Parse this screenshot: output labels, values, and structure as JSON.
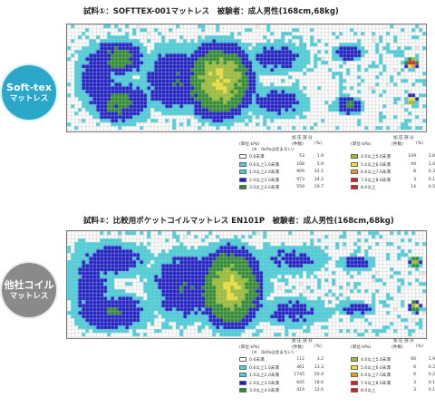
{
  "colors": {
    "gray": "#c9c9c9",
    "cyan": "#3fd3de",
    "blue": "#1e1ed2",
    "green": "#2a8f2a",
    "olive": "#9bc12a",
    "yellow": "#f2e62a",
    "orange": "#f59a1e",
    "red": "#e01b1b",
    "grid": "#bfbfbf"
  },
  "panels": [
    {
      "title": "試料①：SOFTTEX-001マットレス　被験者：成人男性(168cm,68kg)",
      "badge": {
        "line1": "Soft-tex",
        "line2": "マットレス"
      },
      "legend": {
        "head_left": {
          "unit": "(単位:kPa)",
          "header": "加 圧 部 分",
          "count": "(件数)",
          "pct": "(%)",
          "note": "(※　0kPaは含まない)"
        },
        "head_right": {
          "unit": "(単位:kPa)",
          "header": "加 圧 部 分",
          "count": "(件数)",
          "pct": "(%)"
        },
        "left_rows": [
          {
            "label": "0.6未満",
            "count": "53",
            "pct": "1.9",
            "color": "gray"
          },
          {
            "label": "0.6以上1.0未満",
            "count": "168",
            "pct": "5.9",
            "color": "cyan"
          },
          {
            "label": "1.0以上2.0未満",
            "count": "909",
            "pct": "32.1",
            "color": "cyan"
          },
          {
            "label": "2.0以上3.0未満",
            "count": "973",
            "pct": "34.2",
            "color": "blue"
          },
          {
            "label": "3.0以上4.0未満",
            "count": "559",
            "pct": "19.7",
            "color": "green"
          }
        ],
        "right_rows": [
          {
            "label": "4.0以上5.0未満",
            "count": "109",
            "pct": "3.8",
            "color": "olive"
          },
          {
            "label": "5.0以上6.0未満",
            "count": "40",
            "pct": "1.4",
            "color": "yellow"
          },
          {
            "label": "6.0以上7.0未満",
            "count": "8",
            "pct": "0.3",
            "color": "orange"
          },
          {
            "label": "7.0以上8.0未満",
            "count": "3",
            "pct": "0.1",
            "color": "red"
          },
          {
            "label": "8.0以上",
            "count": "14",
            "pct": "0.5",
            "color": "red"
          }
        ]
      }
    },
    {
      "title": "試料②：比較用ポケットコイルマットレス EN101P　被験者：成人男性(168cm,68kg)",
      "badge": {
        "line1": "他社コイル",
        "line2": "マットレス"
      },
      "legend": {
        "head_left": {
          "unit": "(単位:kPa)",
          "header": "加 圧 部 分",
          "count": "(件数)",
          "pct": "(%)",
          "note": "(※　0kPaは含まない)"
        },
        "head_right": {
          "unit": "(単位:kPa)",
          "header": "加 圧 部 分",
          "count": "(件数)",
          "pct": "(%)"
        },
        "left_rows": [
          {
            "label": "0.6未満",
            "count": "112",
            "pct": "3.2",
            "color": "gray"
          },
          {
            "label": "0.6以上1.0未満",
            "count": "461",
            "pct": "13.3",
            "color": "cyan"
          },
          {
            "label": "1.0以上2.0未満",
            "count": "1745",
            "pct": "50.4",
            "color": "cyan"
          },
          {
            "label": "2.0以上3.0未満",
            "count": "645",
            "pct": "18.6",
            "color": "blue"
          },
          {
            "label": "3.0以上4.0未満",
            "count": "414",
            "pct": "12.0",
            "color": "green"
          }
        ],
        "right_rows": [
          {
            "label": "4.0以上5.0未満",
            "count": "66",
            "pct": "1.9",
            "color": "olive"
          },
          {
            "label": "5.0以上6.0未満",
            "count": "6",
            "pct": "0.2",
            "color": "yellow"
          },
          {
            "label": "6.0以上7.0未満",
            "count": "6",
            "pct": "0.2",
            "color": "orange"
          },
          {
            "label": "7.0以上8.0未満",
            "count": "3",
            "pct": "0.1",
            "color": "red"
          },
          {
            "label": "8.0以上",
            "count": "3",
            "pct": "0.1",
            "color": "red"
          }
        ]
      }
    }
  ],
  "chart_data": [
    {
      "type": "heatmap",
      "title": "試料①：SOFTTEX-001マットレス　被験者：成人男性(168cm,68kg)",
      "unit": "kPa",
      "categories": [
        "0.6未満",
        "0.6以上1.0未満",
        "1.0以上2.0未満",
        "2.0以上3.0未満",
        "3.0以上4.0未満",
        "4.0以上5.0未満",
        "5.0以上6.0未満",
        "6.0以上7.0未満",
        "7.0以上8.0未満",
        "8.0以上"
      ],
      "counts": [
        53,
        168,
        909,
        973,
        559,
        109,
        40,
        8,
        3,
        14
      ],
      "percents": [
        1.9,
        5.9,
        32.1,
        34.2,
        19.7,
        3.8,
        1.4,
        0.3,
        0.1,
        0.5
      ]
    },
    {
      "type": "heatmap",
      "title": "試料②：比較用ポケットコイルマットレス EN101P　被験者：成人男性(168cm,68kg)",
      "unit": "kPa",
      "categories": [
        "0.6未満",
        "0.6以上1.0未満",
        "1.0以上2.0未満",
        "2.0以上3.0未満",
        "3.0以上4.0未満",
        "4.0以上5.0未満",
        "5.0以上6.0未満",
        "6.0以上7.0未満",
        "7.0以上8.0未満",
        "8.0以上"
      ],
      "counts": [
        112,
        461,
        1745,
        645,
        414,
        66,
        6,
        6,
        3,
        3
      ],
      "percents": [
        3.2,
        13.3,
        50.4,
        18.6,
        12.0,
        1.9,
        0.2,
        0.2,
        0.1,
        0.1
      ]
    }
  ]
}
